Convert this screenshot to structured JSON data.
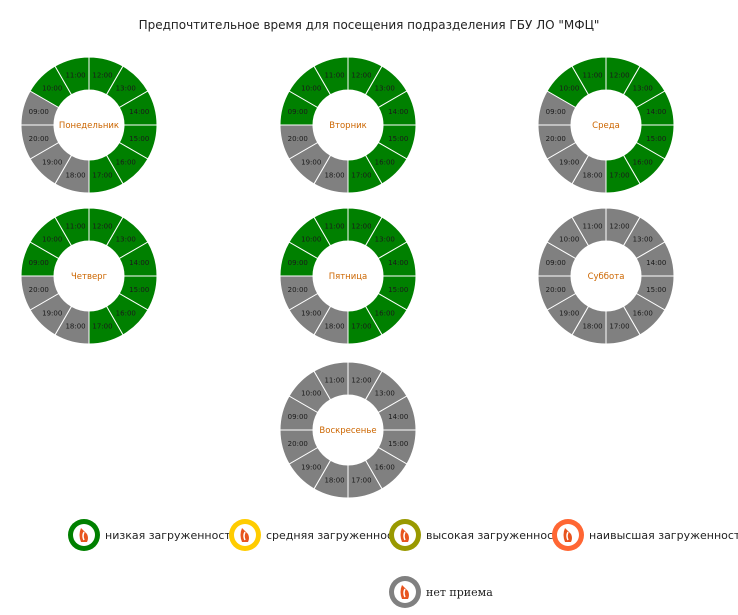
{
  "title": "Предпочтительное время для посещения подразделения ГБУ ЛО \"МФЦ\"",
  "colors": {
    "low": "#008000",
    "medium": "#ffcc00",
    "high": "#999900",
    "highest": "#ff6633",
    "none": "#808080",
    "day_label": "#cc6600"
  },
  "chart_data": [
    {
      "type": "pie",
      "day": "Понедельник",
      "slots": [
        "12:00",
        "13:00",
        "14:00",
        "15:00",
        "16:00",
        "17:00",
        "18:00",
        "19:00",
        "20:00",
        "09:00",
        "10:00",
        "11:00"
      ],
      "status": [
        "low",
        "low",
        "low",
        "low",
        "low",
        "low",
        "none",
        "none",
        "none",
        "none",
        "low",
        "low"
      ]
    },
    {
      "type": "pie",
      "day": "Вторник",
      "slots": [
        "12:00",
        "13:00",
        "14:00",
        "15:00",
        "16:00",
        "17:00",
        "18:00",
        "19:00",
        "20:00",
        "09:00",
        "10:00",
        "11:00"
      ],
      "status": [
        "low",
        "low",
        "low",
        "low",
        "low",
        "low",
        "none",
        "none",
        "none",
        "low",
        "low",
        "low"
      ]
    },
    {
      "type": "pie",
      "day": "Среда",
      "slots": [
        "12:00",
        "13:00",
        "14:00",
        "15:00",
        "16:00",
        "17:00",
        "18:00",
        "19:00",
        "20:00",
        "09:00",
        "10:00",
        "11:00"
      ],
      "status": [
        "low",
        "low",
        "low",
        "low",
        "low",
        "low",
        "none",
        "none",
        "none",
        "none",
        "low",
        "low"
      ]
    },
    {
      "type": "pie",
      "day": "Четверг",
      "slots": [
        "12:00",
        "13:00",
        "14:00",
        "15:00",
        "16:00",
        "17:00",
        "18:00",
        "19:00",
        "20:00",
        "09:00",
        "10:00",
        "11:00"
      ],
      "status": [
        "low",
        "low",
        "low",
        "low",
        "low",
        "low",
        "none",
        "none",
        "none",
        "low",
        "low",
        "low"
      ]
    },
    {
      "type": "pie",
      "day": "Пятница",
      "slots": [
        "12:00",
        "13:00",
        "14:00",
        "15:00",
        "16:00",
        "17:00",
        "18:00",
        "19:00",
        "20:00",
        "09:00",
        "10:00",
        "11:00"
      ],
      "status": [
        "low",
        "low",
        "low",
        "low",
        "low",
        "low",
        "none",
        "none",
        "none",
        "low",
        "low",
        "low"
      ]
    },
    {
      "type": "pie",
      "day": "Суббота",
      "slots": [
        "12:00",
        "13:00",
        "14:00",
        "15:00",
        "16:00",
        "17:00",
        "18:00",
        "19:00",
        "20:00",
        "09:00",
        "10:00",
        "11:00"
      ],
      "status": [
        "none",
        "none",
        "none",
        "none",
        "none",
        "none",
        "none",
        "none",
        "none",
        "none",
        "none",
        "none"
      ]
    },
    {
      "type": "pie",
      "day": "Воскресенье",
      "slots": [
        "12:00",
        "13:00",
        "14:00",
        "15:00",
        "16:00",
        "17:00",
        "18:00",
        "19:00",
        "20:00",
        "09:00",
        "10:00",
        "11:00"
      ],
      "status": [
        "none",
        "none",
        "none",
        "none",
        "none",
        "none",
        "none",
        "none",
        "none",
        "none",
        "none",
        "none"
      ]
    }
  ],
  "legend": [
    {
      "key": "low",
      "label": "низкая загруженность"
    },
    {
      "key": "medium",
      "label": "средняя загруженность"
    },
    {
      "key": "high",
      "label": "высокая загруженность"
    },
    {
      "key": "highest",
      "label": "наивысшая загруженность"
    },
    {
      "key": "none",
      "label": "нет приема"
    }
  ]
}
